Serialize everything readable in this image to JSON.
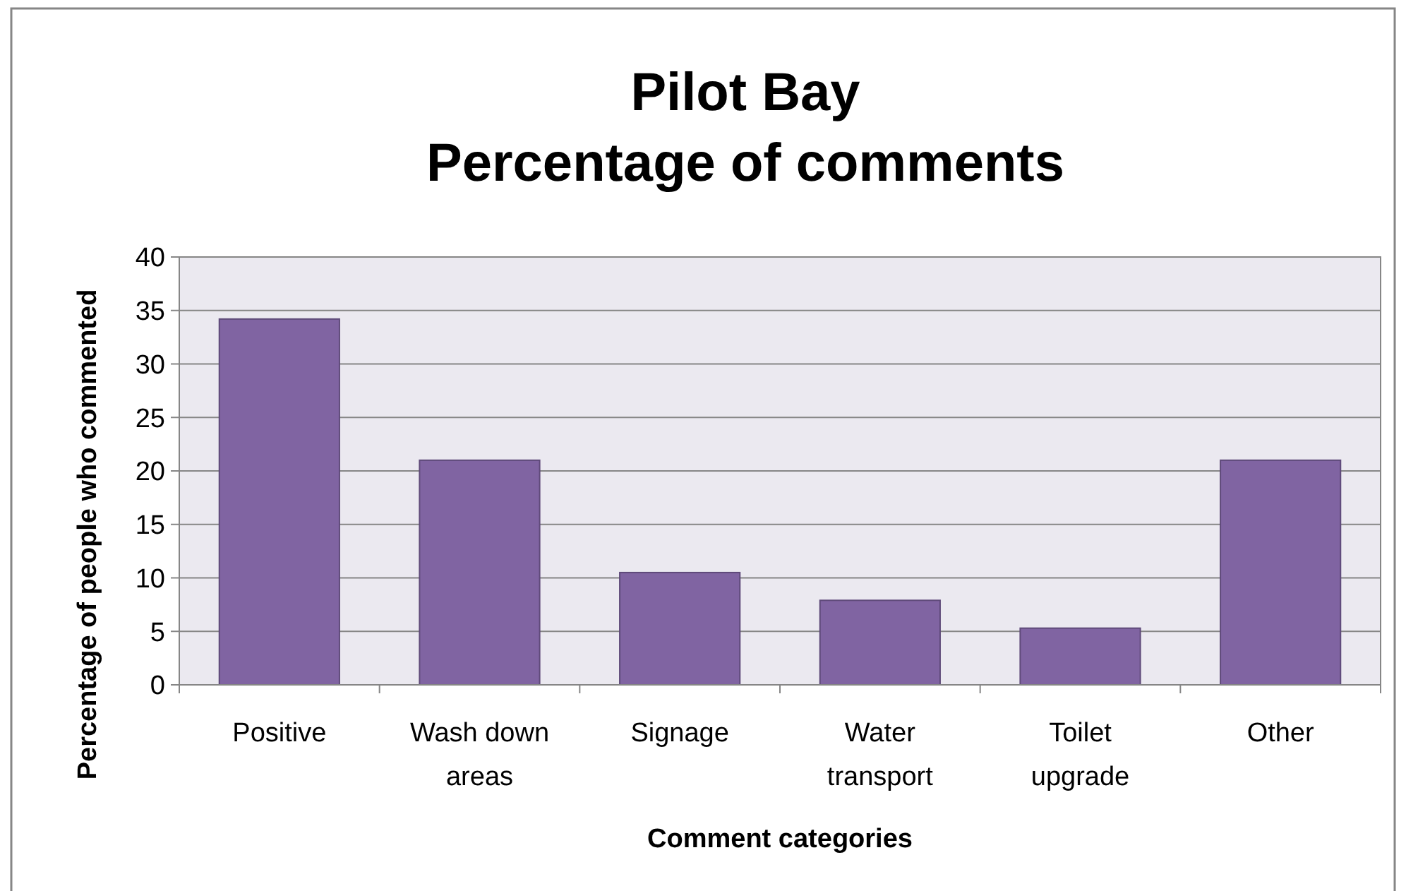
{
  "chart_data": {
    "type": "bar",
    "title": "Pilot Bay\nPercentage of comments",
    "xlabel": "Comment categories",
    "ylabel": "Percentage of people who commented",
    "categories": [
      "Positive",
      "Wash down areas",
      "Signage",
      "Water transport",
      "Toilet upgrade",
      "Other"
    ],
    "values": [
      34.2,
      21,
      10.5,
      7.9,
      5.3,
      21
    ],
    "color": "#8064a2",
    "ylim": [
      0,
      40
    ],
    "yticks": [
      0,
      5,
      10,
      15,
      20,
      25,
      30,
      35,
      40
    ],
    "grid": "y"
  }
}
